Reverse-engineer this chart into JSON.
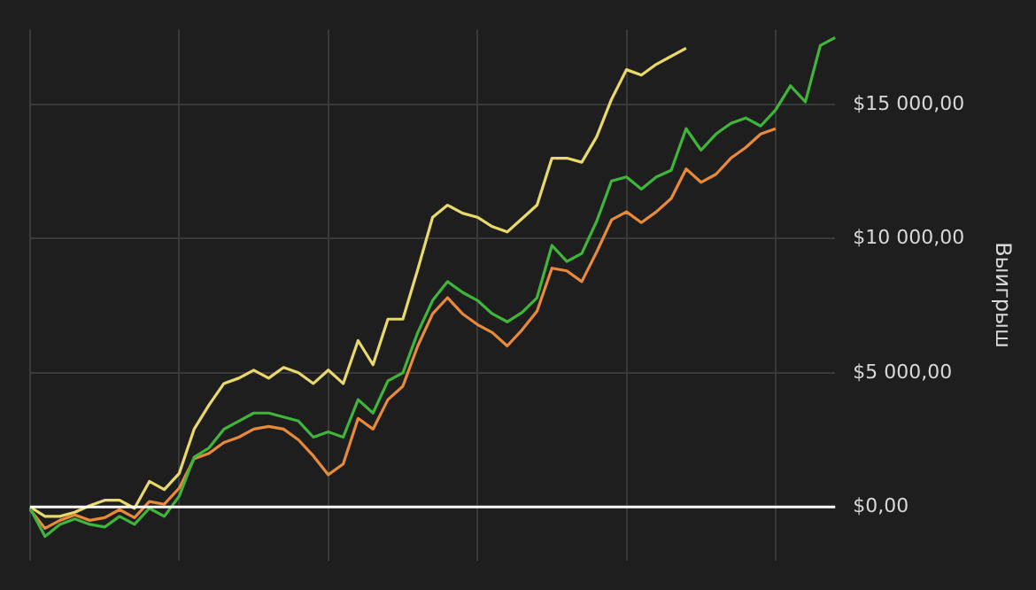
{
  "chart_data": {
    "type": "line",
    "ylabel": "Выигрыш",
    "categories": [
      null,
      null,
      null,
      null,
      null,
      null,
      null,
      null,
      null,
      null,
      null,
      null,
      null,
      null,
      null,
      null,
      null,
      null,
      null,
      null,
      null,
      null,
      null,
      null,
      null,
      null,
      null,
      null,
      null,
      null,
      null,
      null,
      null,
      null,
      null,
      null,
      null,
      null,
      null,
      null,
      null,
      null,
      null,
      null,
      null,
      null,
      null,
      null,
      null,
      null,
      null,
      null,
      null,
      null,
      null
    ],
    "series": [
      {
        "color": "#e8d96a",
        "values": [
          0,
          -350,
          -350,
          -200,
          50,
          250,
          250,
          -50,
          950,
          650,
          1250,
          2900,
          3800,
          4600,
          4800,
          5100,
          4800,
          5200,
          5000,
          4600,
          5100,
          4600,
          6200,
          5300,
          7000,
          7000,
          8850,
          10800,
          11250,
          10950,
          10800,
          10450,
          10250,
          10750,
          11250,
          13000,
          13000,
          12850,
          13800,
          15200,
          16300,
          16100,
          16500,
          16800,
          17100,
          null,
          null,
          null,
          null,
          null,
          null,
          null,
          null,
          null,
          null
        ]
      },
      {
        "color": "#e88a3a",
        "values": [
          -100,
          -800,
          -500,
          -300,
          -500,
          -400,
          -100,
          -400,
          200,
          100,
          700,
          1800,
          2000,
          2400,
          2600,
          2900,
          3000,
          2900,
          2500,
          1900,
          1200,
          1600,
          3300,
          2900,
          4000,
          4500,
          6000,
          7200,
          7800,
          7200,
          6800,
          6500,
          6000,
          6600,
          7300,
          8900,
          8800,
          8400,
          9500,
          10700,
          11000,
          10600,
          11000,
          11500,
          12600,
          12100,
          12400,
          13000,
          13400,
          13900,
          14100,
          null,
          null,
          null,
          null
        ]
      },
      {
        "color": "#3fb53a",
        "values": [
          -50,
          -1100,
          -650,
          -450,
          -650,
          -750,
          -350,
          -650,
          -50,
          -350,
          400,
          1850,
          2200,
          2900,
          3200,
          3500,
          3500,
          3350,
          3200,
          2600,
          2800,
          2600,
          4000,
          3500,
          4700,
          5000,
          6500,
          7700,
          8400,
          8000,
          7700,
          7200,
          6900,
          7250,
          7800,
          9750,
          9150,
          9450,
          10650,
          12150,
          12300,
          11850,
          12300,
          12550,
          14100,
          13300,
          13900,
          14300,
          14500,
          14200,
          14800,
          15700,
          15100,
          17200,
          17500
        ]
      }
    ],
    "ylim": [
      -2000,
      17800
    ],
    "yticks": [
      {
        "value": 0,
        "label": "$0,00"
      },
      {
        "value": 5000,
        "label": "$5 000,00"
      },
      {
        "value": 10000,
        "label": "$10 000,00"
      },
      {
        "value": 15000,
        "label": "$15 000,00"
      }
    ],
    "ref_lines": [
      {
        "axis": "y",
        "value": 0,
        "color": "#ffffff"
      }
    ],
    "grid": true,
    "tick_labels": "y",
    "legend": false,
    "marker": "none",
    "line_style": "solid"
  }
}
